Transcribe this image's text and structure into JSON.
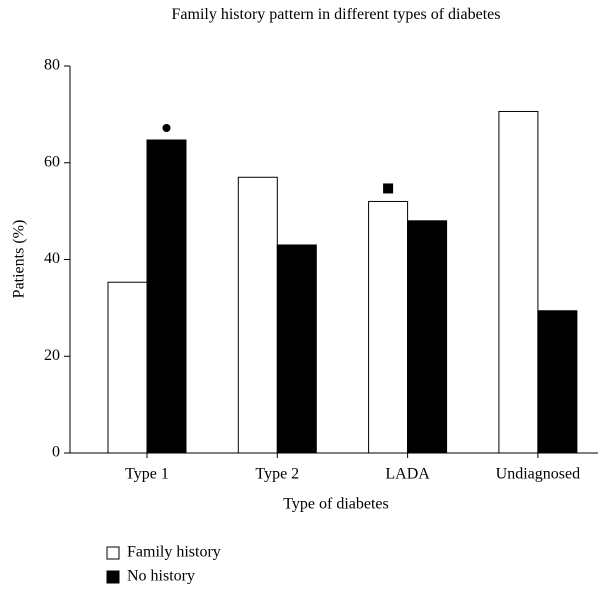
{
  "chart_data": {
    "type": "bar",
    "title": "Family history pattern in different types of diabetes",
    "x_label": "Type of diabetes",
    "y_label": "Patients (%)",
    "categories": [
      "Type 1",
      "Type 2",
      "LADA",
      "Undiagnosed"
    ],
    "series": [
      {
        "name": "Family history",
        "color": "#ffffff",
        "values": [
          35.3,
          57,
          52,
          70.6
        ]
      },
      {
        "name": "No history",
        "color": "#000000",
        "values": [
          64.7,
          43,
          48,
          29.4
        ]
      }
    ],
    "ylim": [
      0,
      80
    ],
    "yticks": [
      0,
      20,
      40,
      60,
      80
    ],
    "grid": false
  }
}
